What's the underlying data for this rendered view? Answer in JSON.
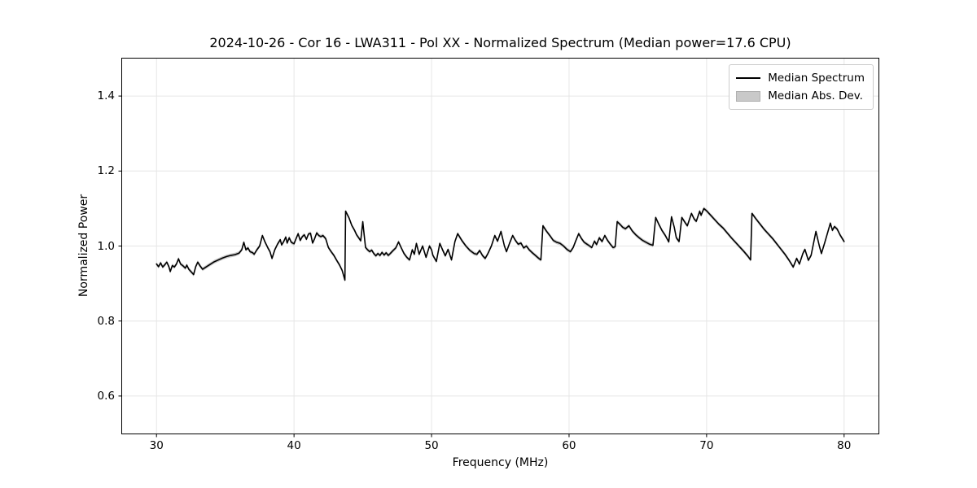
{
  "figure": {
    "title": "2024-10-26 - Cor 16 - LWA311 - Pol XX - Normalized Spectrum (Median power=17.6 CPU)",
    "xlabel": "Frequency (MHz)",
    "ylabel": "Normalized Power"
  },
  "legend": {
    "items": [
      {
        "label": "Median Spectrum",
        "swatch": "line",
        "color": "#000000"
      },
      {
        "label": "Median Abs. Dev.",
        "swatch": "patch",
        "color": "#c9c9c9"
      }
    ]
  },
  "chart_data": {
    "type": "line",
    "title": "2024-10-26 - Cor 16 - LWA311 - Pol XX - Normalized Spectrum (Median power=17.6 CPU)",
    "xlabel": "Frequency (MHz)",
    "ylabel": "Normalized Power",
    "xlim": [
      27.5,
      82.5
    ],
    "ylim": [
      0.5,
      1.5
    ],
    "xticks": [
      30,
      40,
      50,
      60,
      70,
      80
    ],
    "yticks": [
      0.6,
      0.8,
      1.0,
      1.2,
      1.4
    ],
    "grid": true,
    "grid_color": "#e6e6e6",
    "legend_position": "upper right",
    "series": [
      {
        "name": "Median Spectrum",
        "type": "line",
        "color": "#000000",
        "x": [
          30.0,
          30.15,
          30.3,
          30.45,
          30.6,
          30.75,
          30.9,
          31.0,
          31.15,
          31.3,
          31.45,
          31.6,
          31.75,
          31.9,
          32.1,
          32.2,
          32.35,
          32.55,
          32.7,
          32.85,
          33.0,
          33.15,
          33.35,
          33.6,
          33.9,
          34.2,
          34.5,
          34.8,
          35.1,
          35.4,
          35.7,
          36.0,
          36.2,
          36.35,
          36.5,
          36.65,
          36.8,
          37.0,
          37.1,
          37.3,
          37.5,
          37.7,
          37.9,
          38.1,
          38.25,
          38.4,
          38.6,
          38.8,
          39.0,
          39.1,
          39.25,
          39.4,
          39.5,
          39.65,
          39.8,
          40.0,
          40.15,
          40.3,
          40.45,
          40.6,
          40.75,
          40.9,
          41.05,
          41.2,
          41.35,
          41.5,
          41.65,
          41.8,
          41.95,
          42.1,
          42.3,
          42.5,
          42.7,
          42.9,
          43.1,
          43.3,
          43.5,
          43.7,
          43.75,
          44.0,
          44.2,
          44.4,
          44.55,
          44.7,
          44.85,
          45.0,
          45.1,
          45.2,
          45.35,
          45.5,
          45.65,
          45.8,
          45.95,
          46.1,
          46.25,
          46.4,
          46.55,
          46.7,
          46.85,
          47.0,
          47.2,
          47.4,
          47.6,
          47.8,
          48.0,
          48.2,
          48.4,
          48.6,
          48.75,
          48.9,
          49.1,
          49.35,
          49.6,
          49.85,
          50.0,
          50.1,
          50.35,
          50.6,
          50.8,
          51.0,
          51.2,
          51.45,
          51.7,
          51.9,
          52.2,
          52.5,
          52.8,
          53.1,
          53.3,
          53.5,
          53.7,
          53.9,
          54.1,
          54.35,
          54.6,
          54.8,
          55.05,
          55.3,
          55.45,
          55.7,
          55.9,
          56.1,
          56.3,
          56.5,
          56.7,
          56.9,
          57.1,
          57.3,
          57.55,
          57.8,
          57.95,
          58.1,
          58.35,
          58.6,
          58.85,
          59.1,
          59.35,
          59.6,
          59.85,
          60.1,
          60.3,
          60.5,
          60.7,
          60.9,
          61.1,
          61.3,
          61.5,
          61.65,
          61.85,
          62.0,
          62.2,
          62.4,
          62.6,
          62.8,
          63.0,
          63.2,
          63.35,
          63.5,
          63.7,
          63.9,
          64.1,
          64.35,
          64.6,
          64.85,
          65.1,
          65.35,
          65.6,
          65.85,
          66.1,
          66.3,
          66.5,
          66.75,
          67.0,
          67.25,
          67.45,
          67.65,
          67.8,
          68.0,
          68.2,
          68.45,
          68.6,
          68.9,
          69.1,
          69.25,
          69.5,
          69.6,
          69.8,
          70.0,
          70.3,
          70.6,
          70.9,
          71.2,
          71.5,
          71.8,
          72.1,
          72.4,
          72.7,
          73.0,
          73.2,
          73.3,
          73.6,
          73.9,
          74.2,
          74.5,
          74.8,
          75.1,
          75.4,
          75.7,
          76.0,
          76.3,
          76.55,
          76.75,
          77.0,
          77.15,
          77.4,
          77.6,
          77.95,
          78.2,
          78.35,
          78.6,
          79.0,
          79.15,
          79.3,
          79.5,
          79.7,
          79.9,
          80.0
        ],
        "y": [
          0.952,
          0.945,
          0.955,
          0.944,
          0.95,
          0.957,
          0.945,
          0.932,
          0.948,
          0.944,
          0.952,
          0.966,
          0.952,
          0.948,
          0.941,
          0.949,
          0.938,
          0.93,
          0.924,
          0.945,
          0.957,
          0.948,
          0.938,
          0.944,
          0.951,
          0.958,
          0.963,
          0.968,
          0.972,
          0.975,
          0.977,
          0.981,
          0.99,
          1.01,
          0.99,
          0.995,
          0.985,
          0.982,
          0.978,
          0.99,
          1.0,
          1.028,
          1.01,
          0.995,
          0.985,
          0.967,
          0.99,
          1.005,
          1.017,
          1.003,
          1.012,
          1.024,
          1.008,
          1.022,
          1.01,
          1.006,
          1.02,
          1.033,
          1.015,
          1.025,
          1.03,
          1.018,
          1.032,
          1.034,
          1.008,
          1.02,
          1.035,
          1.028,
          1.025,
          1.028,
          1.02,
          0.996,
          0.985,
          0.975,
          0.962,
          0.95,
          0.935,
          0.909,
          1.093,
          1.075,
          1.055,
          1.042,
          1.03,
          1.022,
          1.014,
          1.065,
          1.03,
          0.996,
          0.99,
          0.985,
          0.989,
          0.98,
          0.974,
          0.98,
          0.975,
          0.983,
          0.976,
          0.982,
          0.975,
          0.98,
          0.988,
          0.995,
          1.011,
          0.995,
          0.98,
          0.97,
          0.963,
          0.99,
          0.978,
          1.007,
          0.978,
          1.0,
          0.97,
          1.0,
          0.99,
          0.975,
          0.959,
          1.007,
          0.99,
          0.974,
          0.991,
          0.963,
          1.012,
          1.033,
          1.015,
          1.0,
          0.988,
          0.98,
          0.978,
          0.988,
          0.975,
          0.967,
          0.98,
          1.0,
          1.028,
          1.013,
          1.039,
          1.0,
          0.985,
          1.01,
          1.028,
          1.015,
          1.005,
          1.008,
          0.995,
          1.0,
          0.99,
          0.983,
          0.975,
          0.967,
          0.963,
          1.054,
          1.04,
          1.028,
          1.015,
          1.01,
          1.007,
          1.0,
          0.991,
          0.985,
          0.996,
          1.015,
          1.033,
          1.02,
          1.01,
          1.005,
          1.0,
          0.996,
          1.013,
          1.004,
          1.022,
          1.012,
          1.028,
          1.015,
          1.005,
          0.996,
          0.998,
          1.065,
          1.058,
          1.05,
          1.046,
          1.054,
          1.04,
          1.03,
          1.022,
          1.015,
          1.01,
          1.005,
          1.002,
          1.076,
          1.06,
          1.042,
          1.028,
          1.011,
          1.078,
          1.05,
          1.022,
          1.012,
          1.076,
          1.062,
          1.054,
          1.087,
          1.072,
          1.066,
          1.093,
          1.082,
          1.1,
          1.094,
          1.082,
          1.07,
          1.058,
          1.048,
          1.035,
          1.022,
          1.01,
          0.998,
          0.986,
          0.973,
          0.963,
          1.087,
          1.072,
          1.058,
          1.044,
          1.032,
          1.02,
          1.006,
          0.992,
          0.978,
          0.962,
          0.944,
          0.967,
          0.952,
          0.98,
          0.991,
          0.962,
          0.975,
          1.039,
          1.0,
          0.98,
          1.01,
          1.061,
          1.042,
          1.052,
          1.045,
          1.03,
          1.018,
          1.012
        ]
      },
      {
        "name": "Median Abs. Dev.",
        "type": "band",
        "color": "#c9c9c9",
        "halfwidth": 0.005
      }
    ]
  }
}
